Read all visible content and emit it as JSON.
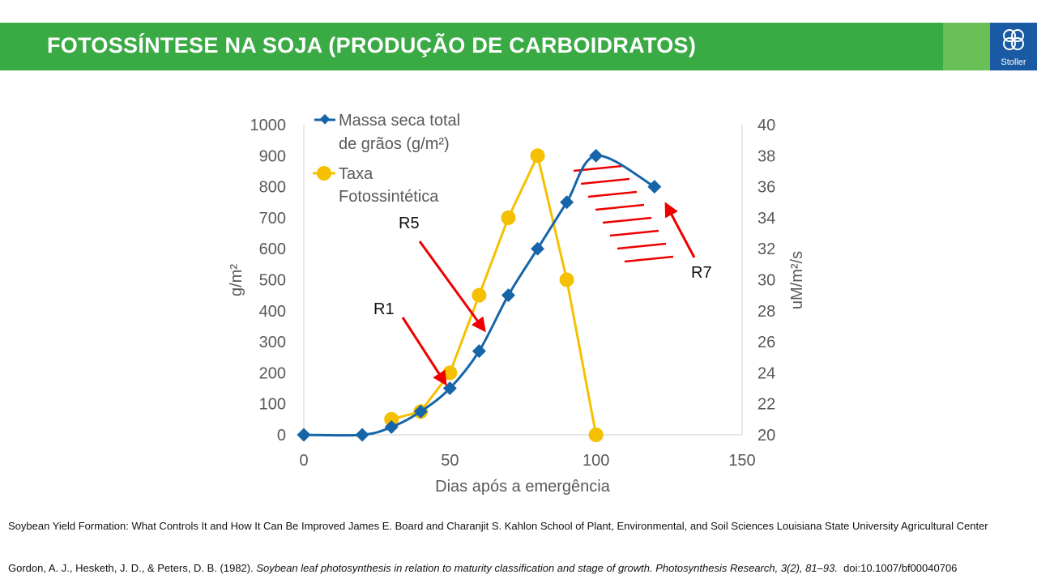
{
  "header": {
    "title": "FOTOSSÍNTESE NA SOJA (PRODUÇÃO DE CARBOIDRATOS)",
    "logo": "Stoller"
  },
  "chart_data": {
    "type": "line",
    "xlabel": "Dias após a emergência",
    "ylabel": "g/m²",
    "y2label": "uM/m²/s",
    "xlim": [
      0,
      150
    ],
    "ylim": [
      0,
      1000
    ],
    "y2lim": [
      20,
      40
    ],
    "xticks": [
      "0",
      "50",
      "100",
      "150"
    ],
    "yticks": [
      "0",
      "100",
      "200",
      "300",
      "400",
      "500",
      "600",
      "700",
      "800",
      "900",
      "1000"
    ],
    "y2ticks": [
      "20",
      "22",
      "24",
      "26",
      "28",
      "30",
      "32",
      "34",
      "36",
      "38",
      "40"
    ],
    "legend_position": "top-left",
    "series": [
      {
        "name_line1": "Massa seca total",
        "name_line2": "de grãos (g/m²)",
        "axis": "left",
        "color": "#1565a8",
        "marker": "diamond",
        "x": [
          0,
          20,
          30,
          40,
          50,
          60,
          70,
          80,
          90,
          100,
          120
        ],
        "y": [
          0,
          0,
          25,
          75,
          150,
          270,
          450,
          600,
          750,
          900,
          800
        ]
      },
      {
        "name_line1": "Taxa",
        "name_line2": "Fotossintética",
        "axis": "right",
        "color": "#f5c000",
        "marker": "circle",
        "x": [
          30,
          40,
          50,
          60,
          70,
          80,
          90,
          100
        ],
        "y": [
          21,
          21.5,
          24,
          29,
          34,
          38,
          30,
          20
        ]
      }
    ],
    "annotations": [
      {
        "text": "R1",
        "x": 50,
        "y": 150
      },
      {
        "text": "R5",
        "x": 62,
        "y": 330
      },
      {
        "text": "R7",
        "x": 123,
        "y": 750
      }
    ]
  },
  "references": [
    "Soybean Yield Formation: What Controls It and How It Can Be Improved James E. Board and Charanjit S. Kahlon School of Plant, Environmental, and Soil Sciences Louisiana State University Agricultural Center",
    "Gordon, A. J., Hesketh, J. D., & Peters, D. B. (1982).",
    "Soybean leaf photosynthesis in relation to maturity classification and stage of growth. Photosynthesis Research, 3(2), 81–93.",
    "doi:10.1007/bf00040706"
  ]
}
